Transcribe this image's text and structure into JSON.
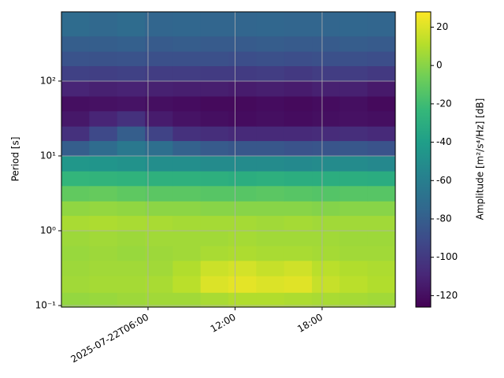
{
  "chart_data": {
    "type": "heatmap",
    "colormap": "viridis",
    "grid": true,
    "y_scale": "log",
    "ylabel": "Period [s]",
    "colorbar_label": "Amplitude [m²/s⁴/Hz] [dB]",
    "xlim": [
      0.03,
      23.05
    ],
    "xticks": [
      {
        "value": 6,
        "label": "2025-07-22T06:00"
      },
      {
        "value": 12,
        "label": "12:00"
      },
      {
        "value": 18,
        "label": "18:00"
      }
    ],
    "ylim": [
      0.0953,
      843
    ],
    "yticks": [
      {
        "value": 0.1,
        "label": "10⁻¹"
      },
      {
        "value": 1,
        "label": "10⁰"
      },
      {
        "value": 10,
        "label": "10¹"
      },
      {
        "value": 100,
        "label": "10²"
      }
    ],
    "clim": [
      -126,
      28
    ],
    "cticks": [
      -120,
      -100,
      -80,
      -60,
      -40,
      -20,
      0,
      20
    ],
    "x_edges": [
      0.03,
      1.95,
      3.87,
      5.79,
      7.71,
      9.62,
      11.54,
      13.46,
      15.38,
      17.3,
      19.21,
      21.13,
      23.05
    ],
    "y_edges": [
      0.0953,
      0.15,
      0.25,
      0.4,
      0.63,
      1,
      1.6,
      2.5,
      4,
      6.3,
      10,
      16,
      25,
      40,
      63,
      100,
      160,
      250,
      400,
      843
    ],
    "values": [
      [
        3,
        4,
        5,
        6,
        6,
        8,
        10,
        10,
        9,
        8,
        7,
        6
      ],
      [
        6,
        7,
        7,
        8,
        12,
        20,
        22,
        20,
        21,
        15,
        12,
        10
      ],
      [
        5,
        6,
        6,
        6,
        10,
        16,
        18,
        15,
        17,
        12,
        10,
        9
      ],
      [
        4,
        5,
        4,
        5,
        6,
        8,
        9,
        8,
        8,
        7,
        6,
        6
      ],
      [
        5,
        6,
        5,
        6,
        6,
        6,
        7,
        6,
        6,
        6,
        5,
        5
      ],
      [
        8,
        9,
        8,
        8,
        7,
        7,
        7,
        6,
        7,
        6,
        6,
        6
      ],
      [
        2,
        3,
        2,
        1,
        1,
        0,
        0,
        0,
        0,
        -1,
        0,
        0
      ],
      [
        -10,
        -9,
        -11,
        -12,
        -12,
        -13,
        -13,
        -12,
        -13,
        -14,
        -13,
        -13
      ],
      [
        -25,
        -26,
        -27,
        -28,
        -28,
        -29,
        -30,
        -29,
        -30,
        -30,
        -30,
        -31
      ],
      [
        -45,
        -46,
        -48,
        -50,
        -50,
        -52,
        -52,
        -52,
        -53,
        -52,
        -52,
        -54
      ],
      [
        -80,
        -72,
        -64,
        -70,
        -78,
        -82,
        -84,
        -84,
        -86,
        -85,
        -84,
        -86
      ],
      [
        -104,
        -92,
        -80,
        -95,
        -104,
        -106,
        -108,
        -108,
        -108,
        -107,
        -106,
        -108
      ],
      [
        -116,
        -110,
        -104,
        -114,
        -118,
        -120,
        -121,
        -120,
        -121,
        -120,
        -119,
        -120
      ],
      [
        -120,
        -119,
        -118,
        -120,
        -121,
        -122,
        -122,
        -121,
        -122,
        -121,
        -120,
        -122
      ],
      [
        -110,
        -112,
        -111,
        -112,
        -113,
        -113,
        -114,
        -113,
        -114,
        -112,
        -112,
        -115
      ],
      [
        -96,
        -97,
        -96,
        -98,
        -98,
        -99,
        -99,
        -98,
        -100,
        -98,
        -98,
        -100
      ],
      [
        -86,
        -87,
        -86,
        -88,
        -88,
        -88,
        -89,
        -88,
        -89,
        -88,
        -88,
        -89
      ],
      [
        -80,
        -80,
        -79,
        -82,
        -81,
        -82,
        -82,
        -81,
        -82,
        -82,
        -81,
        -82
      ],
      [
        -72,
        -74,
        -72,
        -76,
        -75,
        -76,
        -76,
        -75,
        -76,
        -76,
        -75,
        -76
      ]
    ]
  }
}
